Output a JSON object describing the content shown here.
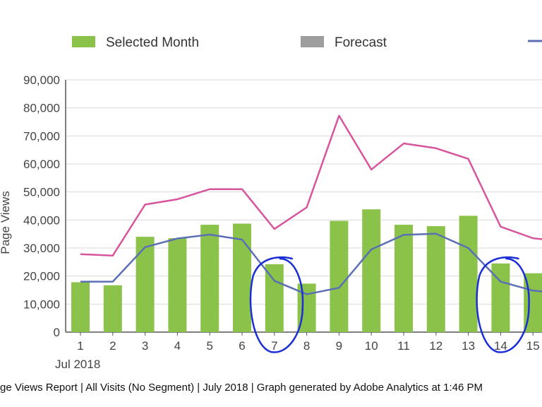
{
  "chart_data": {
    "type": "bar",
    "ylabel": "Page Views",
    "ylim": [
      0,
      90000
    ],
    "yticks": [
      "0",
      "10,000",
      "20,000",
      "30,000",
      "40,000",
      "50,000",
      "60,000",
      "70,000",
      "80,000",
      "90,000"
    ],
    "categories": [
      "1",
      "2",
      "3",
      "4",
      "5",
      "6",
      "7",
      "8",
      "9",
      "10",
      "11",
      "12",
      "13",
      "14",
      "15"
    ],
    "month_label": "Jul 2018",
    "legend": [
      {
        "name": "Selected Month",
        "color": "#8bc34a",
        "kind": "bar"
      },
      {
        "name": "Forecast",
        "color": "#9e9e9e",
        "kind": "bar"
      },
      {
        "name": "",
        "color": "#5b6fb5",
        "kind": "line"
      }
    ],
    "series": [
      {
        "name": "Selected Month",
        "type": "bar",
        "color": "#8bc34a",
        "values": [
          17800,
          16700,
          34000,
          33500,
          38300,
          38700,
          24200,
          17300,
          39700,
          43800,
          38300,
          37800,
          41500,
          24500,
          21000
        ]
      },
      {
        "type": "line",
        "color": "#d6559d",
        "values": [
          27800,
          27300,
          45500,
          47400,
          51000,
          51000,
          36800,
          44500,
          77200,
          58000,
          67300,
          65600,
          61800,
          37600,
          33500
        ]
      },
      {
        "type": "line",
        "color": "#5b6fb5",
        "values": [
          18000,
          18000,
          30300,
          33400,
          34800,
          33000,
          18300,
          13500,
          15800,
          29500,
          34700,
          35100,
          30000,
          18000,
          14800
        ]
      }
    ],
    "annotations": [
      {
        "type": "hand-drawn-circle",
        "around": "7",
        "color": "#1a2fd6"
      },
      {
        "type": "hand-drawn-circle",
        "around": "14",
        "color": "#1a2fd6"
      }
    ],
    "grid": true,
    "legend_placement": "top"
  },
  "footer": "ge Views Report | All Visits (No Segment) | July 2018 | Graph generated by Adobe Analytics at  1:46 PM"
}
